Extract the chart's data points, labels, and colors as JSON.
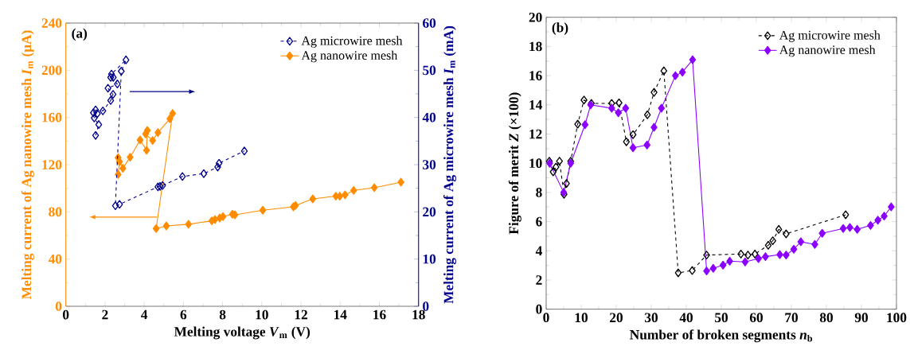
{
  "chart_data": [
    {
      "type": "line",
      "xlabel": "Melting voltage *V*$_{m}$ (V)",
      "ylabel": "Melting current of Ag nanowire mesh *I*$_{m}$ (μA)",
      "y2label": "Melting current of Ag microwire mesh *I*$_{m}$ (mA)",
      "xlim": [
        0,
        18
      ],
      "xticks": [
        0,
        2,
        4,
        6,
        8,
        10,
        12,
        14,
        16,
        18
      ],
      "ylim": [
        0,
        240
      ],
      "yticks": [
        0,
        40,
        80,
        120,
        160,
        200,
        240
      ],
      "y2lim": [
        0,
        60
      ],
      "y2ticks": [
        0,
        10,
        20,
        30,
        40,
        50,
        60
      ],
      "legend": "top right",
      "annotations": [
        "(a)"
      ],
      "series": [
        {
          "name": "Ag microwire mesh",
          "color": "#00008b",
          "axis": "y2",
          "line_style": "dashed",
          "marker": "diamond",
          "x": [
            1.52,
            1.68,
            1.45,
            1.61,
            1.41,
            1.52,
            1.89,
            2.29,
            2.41,
            2.15,
            2.63,
            2.29,
            2.42,
            2.33,
            3.07,
            2.83,
            2.53,
            2.74,
            4.7,
            4.81,
            4.94,
            5.95,
            7.04,
            7.75,
            7.82,
            9.11
          ],
          "values": [
            36.2,
            38.5,
            39.9,
            40.8,
            41.0,
            41.6,
            41.4,
            43.6,
            44.9,
            46.2,
            47.1,
            48.5,
            48.5,
            49.2,
            52.2,
            49.8,
            21.3,
            21.6,
            25.3,
            25.4,
            25.6,
            27.5,
            28.1,
            29.5,
            30.3,
            32.9
          ]
        },
        {
          "name": "Ag nanowire mesh",
          "color": "#ff8c00",
          "line_style": "solid",
          "marker": "diamond",
          "x": [
            2.67,
            2.74,
            2.67,
            2.91,
            3.28,
            3.79,
            4.12,
            4.16,
            4.07,
            4.43,
            4.7,
            5.31,
            5.45,
            4.61,
            5.13,
            6.26,
            7.45,
            7.61,
            7.85,
            8.02,
            8.5,
            8.63,
            10.05,
            11.61,
            11.72,
            12.6,
            13.78,
            13.98,
            14.25,
            14.69,
            15.74,
            17.1
          ],
          "values": [
            111.7,
            122.5,
            125.9,
            116.9,
            126.3,
            140.9,
            132.2,
            149.0,
            146.1,
            140.5,
            147.2,
            158.9,
            163.4,
            65.9,
            68.1,
            69.5,
            72.4,
            73.5,
            74.8,
            76.0,
            78.0,
            77.5,
            81.4,
            84.3,
            85.4,
            91.0,
            93.3,
            93.3,
            94.4,
            98.2,
            100.5,
            105.2
          ]
        }
      ]
    },
    {
      "type": "line",
      "xlabel": "Number of broken segments *n*$_{b}$",
      "ylabel": "Figure of merit *Z* (×100)",
      "xlim": [
        0,
        100
      ],
      "xticks": [
        0,
        10,
        20,
        30,
        40,
        50,
        60,
        70,
        80,
        90,
        100
      ],
      "ylim": [
        0,
        20
      ],
      "yticks": [
        0,
        2,
        4,
        6,
        8,
        10,
        12,
        14,
        16,
        18,
        20
      ],
      "legend": "top right",
      "annotations": [
        "(b)"
      ],
      "series": [
        {
          "name": "Ag microwire mesh",
          "color": "#000000",
          "line_style": "dashed",
          "marker": "diamond",
          "x": [
            0.9,
            2.0,
            2.8,
            3.8,
            5.1,
            5.8,
            7.0,
            9.0,
            10.8,
            12.9,
            18.7,
            20.8,
            22.9,
            24.8,
            28.9,
            30.8,
            33.6,
            37.7,
            41.7,
            45.8,
            55.6,
            57.6,
            59.6,
            63.4,
            64.7,
            66.4,
            68.5,
            85.5
          ],
          "values": [
            10.14,
            9.41,
            9.74,
            10.14,
            7.87,
            8.61,
            10.14,
            12.68,
            14.33,
            14.1,
            14.1,
            14.14,
            11.47,
            11.96,
            13.32,
            14.86,
            16.33,
            2.49,
            2.65,
            3.71,
            3.78,
            3.71,
            3.78,
            4.38,
            4.69,
            5.47,
            5.16,
            6.47
          ]
        },
        {
          "name": "Ag nanowire mesh",
          "color": "#8b00ff",
          "line_style": "solid",
          "marker": "diamond",
          "x": [
            1.0,
            5.0,
            7.0,
            11.1,
            12.7,
            18.7,
            20.6,
            22.7,
            24.8,
            28.8,
            30.8,
            32.9,
            36.9,
            38.9,
            41.8,
            45.8,
            47.7,
            50.5,
            52.4,
            56.8,
            60.6,
            62.6,
            66.7,
            68.5,
            70.7,
            72.7,
            76.7,
            78.8,
            84.8,
            86.7,
            88.8,
            92.6,
            94.7,
            96.5,
            98.5
          ],
          "values": [
            10.0,
            8.0,
            10.0,
            12.64,
            14.0,
            13.77,
            13.46,
            13.77,
            11.06,
            11.25,
            12.46,
            13.77,
            16.0,
            16.24,
            17.09,
            2.62,
            2.8,
            3.02,
            3.29,
            3.24,
            3.47,
            3.6,
            3.74,
            3.71,
            4.11,
            4.62,
            4.44,
            5.2,
            5.53,
            5.6,
            5.47,
            5.74,
            6.1,
            6.38,
            7.01
          ]
        }
      ]
    }
  ]
}
